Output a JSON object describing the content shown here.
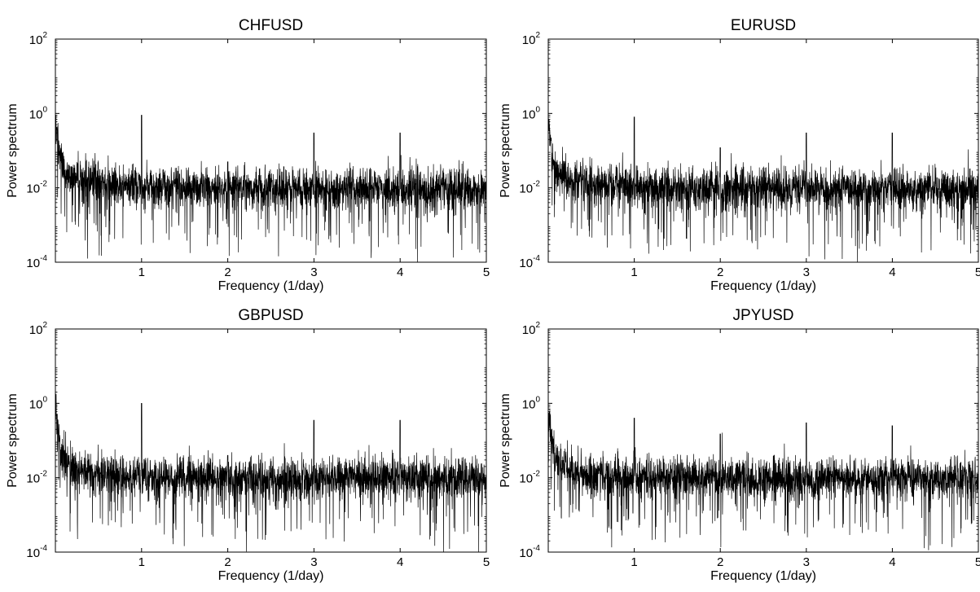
{
  "figure": {
    "panels": [
      {
        "id": "chf",
        "title": "CHFUSD"
      },
      {
        "id": "eur",
        "title": "EURUSD"
      },
      {
        "id": "gbp",
        "title": "GBPUSD"
      },
      {
        "id": "jpy",
        "title": "JPYUSD"
      }
    ]
  },
  "chart_data": [
    {
      "type": "line",
      "title": "CHFUSD",
      "xlabel": "Frequency (1/day)",
      "ylabel": "Power spectrum",
      "xlim": [
        0,
        5
      ],
      "ylim": [
        0.0001,
        100
      ],
      "yscale": "log",
      "xticks": [
        "1",
        "2",
        "3",
        "4",
        "5"
      ],
      "yticks": [
        {
          "base": "10",
          "exp": "2"
        },
        {
          "base": "10",
          "exp": "0"
        },
        {
          "base": "10",
          "exp": "-2"
        },
        {
          "base": "10",
          "exp": "-4"
        }
      ],
      "grid": false,
      "color": "#000000",
      "series": [
        {
          "approx_points": {
            "x": [
              0.01,
              0.05,
              0.1,
              0.2,
              0.4,
              0.7,
              1.0,
              1.5,
              2.0,
              2.5,
              3.0,
              3.5,
              4.0,
              4.5,
              5.0
            ],
            "y": [
              2.0,
              0.2,
              0.06,
              0.03,
              0.018,
              0.014,
              0.9,
              0.011,
              0.05,
              0.01,
              0.3,
              0.01,
              0.3,
              0.01,
              0.01
            ]
          }
        }
      ]
    },
    {
      "type": "line",
      "title": "EURUSD",
      "xlabel": "Frequency (1/day)",
      "ylabel": "Power spectrum",
      "xlim": [
        0,
        5
      ],
      "ylim": [
        0.0001,
        100
      ],
      "yscale": "log",
      "xticks": [
        "1",
        "2",
        "3",
        "4",
        "5"
      ],
      "yticks": [
        {
          "base": "10",
          "exp": "2"
        },
        {
          "base": "10",
          "exp": "0"
        },
        {
          "base": "10",
          "exp": "-2"
        },
        {
          "base": "10",
          "exp": "-4"
        }
      ],
      "grid": false,
      "color": "#000000",
      "series": [
        {
          "approx_points": {
            "x": [
              0.01,
              0.05,
              0.1,
              0.2,
              0.4,
              0.7,
              1.0,
              1.5,
              2.0,
              2.5,
              3.0,
              3.5,
              4.0,
              4.5,
              5.0
            ],
            "y": [
              2.0,
              0.2,
              0.05,
              0.025,
              0.016,
              0.013,
              0.8,
              0.011,
              0.12,
              0.01,
              0.3,
              0.01,
              0.3,
              0.01,
              0.01
            ]
          }
        }
      ]
    },
    {
      "type": "line",
      "title": "GBPUSD",
      "xlabel": "Frequency (1/day)",
      "ylabel": "Power spectrum",
      "xlim": [
        0,
        5
      ],
      "ylim": [
        0.0001,
        100
      ],
      "yscale": "log",
      "xticks": [
        "1",
        "2",
        "3",
        "4",
        "5"
      ],
      "yticks": [
        {
          "base": "10",
          "exp": "2"
        },
        {
          "base": "10",
          "exp": "0"
        },
        {
          "base": "10",
          "exp": "-2"
        },
        {
          "base": "10",
          "exp": "-4"
        }
      ],
      "grid": false,
      "color": "#000000",
      "series": [
        {
          "approx_points": {
            "x": [
              0.01,
              0.05,
              0.1,
              0.2,
              0.4,
              0.7,
              1.0,
              1.5,
              2.0,
              2.5,
              3.0,
              3.5,
              4.0,
              4.5,
              5.0
            ],
            "y": [
              2.0,
              0.2,
              0.06,
              0.03,
              0.018,
              0.014,
              1.0,
              0.011,
              0.04,
              0.01,
              0.35,
              0.01,
              0.35,
              0.01,
              0.01
            ]
          }
        }
      ]
    },
    {
      "type": "line",
      "title": "JPYUSD",
      "xlabel": "Frequency (1/day)",
      "ylabel": "Power spectrum",
      "xlim": [
        0,
        5
      ],
      "ylim": [
        0.0001,
        100
      ],
      "yscale": "log",
      "xticks": [
        "1",
        "2",
        "3",
        "4",
        "5"
      ],
      "yticks": [
        {
          "base": "10",
          "exp": "2"
        },
        {
          "base": "10",
          "exp": "0"
        },
        {
          "base": "10",
          "exp": "-2"
        },
        {
          "base": "10",
          "exp": "-4"
        }
      ],
      "grid": false,
      "color": "#000000",
      "series": [
        {
          "approx_points": {
            "x": [
              0.01,
              0.05,
              0.1,
              0.2,
              0.4,
              0.7,
              1.0,
              1.5,
              2.0,
              2.5,
              3.0,
              3.5,
              4.0,
              4.5,
              5.0
            ],
            "y": [
              2.0,
              0.2,
              0.05,
              0.03,
              0.02,
              0.016,
              0.4,
              0.013,
              0.15,
              0.012,
              0.3,
              0.012,
              0.25,
              0.012,
              0.012
            ]
          }
        }
      ]
    }
  ]
}
